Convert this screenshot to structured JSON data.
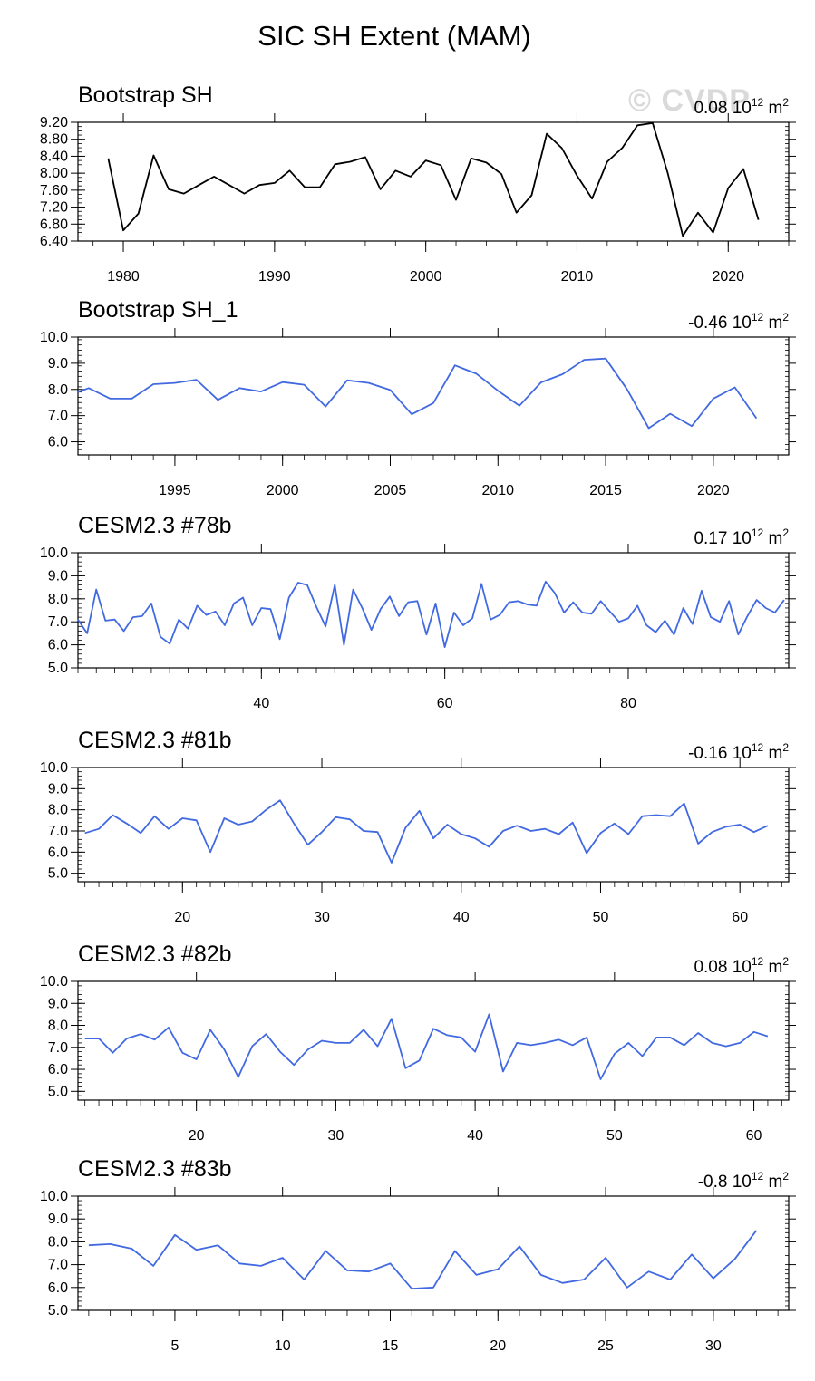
{
  "title": "SIC SH Extent (MAM)",
  "watermark": "© CVDP",
  "colors": {
    "obs": "#000000",
    "model": "#4169e1",
    "axis": "#000000"
  },
  "chart_data": [
    {
      "type": "line",
      "title": "Bootstrap SH",
      "trend": {
        "value": "0.08",
        "unit_base": "10",
        "unit_exp": "12",
        "unit_tail": "m",
        "unit_exp2": "2"
      },
      "line_color": "#000000",
      "xlim": [
        1977,
        2024
      ],
      "ylim": [
        6.4,
        9.2
      ],
      "yticks": [
        6.4,
        6.8,
        7.2,
        7.6,
        8.0,
        8.4,
        8.8,
        9.2
      ],
      "ytick_labels": [
        "6.40",
        "6.80",
        "7.20",
        "7.60",
        "8.00",
        "8.40",
        "8.80",
        "9.20"
      ],
      "yminor": 0.1,
      "xticks": [
        1980,
        1990,
        2000,
        2010,
        2020
      ],
      "xtick_labels": [
        "1980",
        "1990",
        "2000",
        "2010",
        "2020"
      ],
      "xminor": 2,
      "x": [
        1979,
        1980,
        1981,
        1982,
        1983,
        1984,
        1985,
        1986,
        1987,
        1988,
        1989,
        1990,
        1991,
        1992,
        1993,
        1994,
        1995,
        1996,
        1997,
        1998,
        1999,
        2000,
        2001,
        2002,
        2003,
        2004,
        2005,
        2006,
        2007,
        2008,
        2009,
        2010,
        2011,
        2012,
        2013,
        2014,
        2015,
        2016,
        2017,
        2018,
        2019,
        2020,
        2021,
        2022
      ],
      "y": [
        8.35,
        6.65,
        7.05,
        8.42,
        7.62,
        7.52,
        7.72,
        7.92,
        7.72,
        7.52,
        7.72,
        7.77,
        8.06,
        7.67,
        7.67,
        8.21,
        8.27,
        8.38,
        7.62,
        8.06,
        7.92,
        8.3,
        8.19,
        7.37,
        8.35,
        8.25,
        7.98,
        7.07,
        7.48,
        8.93,
        8.59,
        7.94,
        7.4,
        8.27,
        8.6,
        9.13,
        9.18,
        8.0,
        6.52,
        7.07,
        6.6,
        7.65,
        8.1,
        6.9
      ]
    },
    {
      "type": "line",
      "title": "Bootstrap SH_1",
      "trend": {
        "value": "-0.46",
        "unit_base": "10",
        "unit_exp": "12",
        "unit_tail": "m",
        "unit_exp2": "2"
      },
      "line_color": "#4169e1",
      "xlim": [
        1990.5,
        2023.5
      ],
      "ylim": [
        5.5,
        10.0
      ],
      "yticks": [
        6.0,
        7.0,
        8.0,
        9.0,
        10.0
      ],
      "ytick_labels": [
        "6.0",
        "7.0",
        "8.0",
        "9.0",
        "10.0"
      ],
      "yminor": 0.2,
      "xticks": [
        1995,
        2000,
        2005,
        2010,
        2015,
        2020
      ],
      "xtick_labels": [
        "1995",
        "2000",
        "2005",
        "2010",
        "2015",
        "2020"
      ],
      "xminor": 1,
      "x": [
        1990.5,
        1991,
        1992,
        1993,
        1994,
        1995,
        1996,
        1997,
        1998,
        1999,
        2000,
        2001,
        2002,
        2003,
        2004,
        2005,
        2006,
        2007,
        2008,
        2009,
        2010,
        2011,
        2012,
        2013,
        2014,
        2015,
        2016,
        2017,
        2018,
        2019,
        2020,
        2021,
        2022
      ],
      "y": [
        7.9,
        8.05,
        7.65,
        7.65,
        8.2,
        8.25,
        8.37,
        7.6,
        8.05,
        7.92,
        8.28,
        8.18,
        7.35,
        8.35,
        8.25,
        7.98,
        7.05,
        7.48,
        8.92,
        8.6,
        7.95,
        7.38,
        8.27,
        8.58,
        9.13,
        9.18,
        8.0,
        6.52,
        7.07,
        6.6,
        7.65,
        8.08,
        6.9
      ]
    },
    {
      "type": "line",
      "title": "CESM2.3 #78b",
      "trend": {
        "value": "0.17",
        "unit_base": "10",
        "unit_exp": "12",
        "unit_tail": "m",
        "unit_exp2": "2"
      },
      "line_color": "#4169e1",
      "xlim": [
        20,
        97.5
      ],
      "ylim": [
        5.0,
        10.0
      ],
      "yticks": [
        5.0,
        6.0,
        7.0,
        8.0,
        9.0,
        10.0
      ],
      "ytick_labels": [
        "5.0",
        "6.0",
        "7.0",
        "8.0",
        "9.0",
        "10.0"
      ],
      "yminor": 0.2,
      "xticks": [
        40,
        60,
        80
      ],
      "xtick_labels": [
        "40",
        "60",
        "80"
      ],
      "xminor": 2,
      "x": [
        20,
        21,
        22,
        23,
        24,
        25,
        26,
        27,
        28,
        29,
        30,
        31,
        32,
        33,
        34,
        35,
        36,
        37,
        38,
        39,
        40,
        41,
        42,
        43,
        44,
        45,
        46,
        47,
        48,
        49,
        50,
        51,
        52,
        53,
        54,
        55,
        56,
        57,
        58,
        59,
        60,
        61,
        62,
        63,
        64,
        65,
        66,
        67,
        68,
        69,
        70,
        71,
        72,
        73,
        74,
        75,
        76,
        77,
        78,
        79,
        80,
        81,
        82,
        83,
        84,
        85,
        86,
        87,
        88,
        89,
        90,
        91,
        92,
        93,
        94,
        95,
        96,
        97
      ],
      "y": [
        7.1,
        6.5,
        8.4,
        7.05,
        7.1,
        6.6,
        7.2,
        7.25,
        7.8,
        6.35,
        6.05,
        7.1,
        6.7,
        7.7,
        7.3,
        7.45,
        6.85,
        7.8,
        8.05,
        6.85,
        7.6,
        7.55,
        6.25,
        8.05,
        8.7,
        8.6,
        7.65,
        6.8,
        8.6,
        6.0,
        8.4,
        7.6,
        6.65,
        7.55,
        8.1,
        7.25,
        7.85,
        7.9,
        6.45,
        7.8,
        5.9,
        7.4,
        6.85,
        7.15,
        8.65,
        7.1,
        7.3,
        7.85,
        7.9,
        7.75,
        7.7,
        8.75,
        8.25,
        7.4,
        7.85,
        7.4,
        7.35,
        7.9,
        7.45,
        7.0,
        7.15,
        7.7,
        6.85,
        6.55,
        7.05,
        6.45,
        7.6,
        6.9,
        8.35,
        7.2,
        7.0,
        7.9,
        6.45,
        7.25,
        7.95,
        7.6,
        7.4,
        7.95
      ]
    },
    {
      "type": "line",
      "title": "CESM2.3 #81b",
      "trend": {
        "value": "-0.16",
        "unit_base": "10",
        "unit_exp": "12",
        "unit_tail": "m",
        "unit_exp2": "2"
      },
      "line_color": "#4169e1",
      "xlim": [
        12.5,
        63.5
      ],
      "ylim": [
        4.6,
        10.0
      ],
      "yticks": [
        5.0,
        6.0,
        7.0,
        8.0,
        9.0,
        10.0
      ],
      "ytick_labels": [
        "5.0",
        "6.0",
        "7.0",
        "8.0",
        "9.0",
        "10.0"
      ],
      "yminor": 0.2,
      "xticks": [
        20,
        30,
        40,
        50,
        60
      ],
      "xtick_labels": [
        "20",
        "30",
        "40",
        "50",
        "60"
      ],
      "xminor": 1,
      "x": [
        13,
        14,
        15,
        16,
        17,
        18,
        19,
        20,
        21,
        22,
        23,
        24,
        25,
        26,
        27,
        28,
        29,
        30,
        31,
        32,
        33,
        34,
        35,
        36,
        37,
        38,
        39,
        40,
        41,
        42,
        43,
        44,
        45,
        46,
        47,
        48,
        49,
        50,
        51,
        52,
        53,
        54,
        55,
        56,
        57,
        58,
        59,
        60,
        61,
        62
      ],
      "y": [
        6.9,
        7.1,
        7.75,
        7.35,
        6.9,
        7.7,
        7.1,
        7.6,
        7.5,
        6.0,
        7.6,
        7.3,
        7.45,
        8.0,
        8.45,
        7.35,
        6.35,
        6.95,
        7.65,
        7.55,
        7.0,
        6.95,
        5.5,
        7.15,
        7.95,
        6.65,
        7.3,
        6.85,
        6.65,
        6.25,
        7.0,
        7.25,
        7.0,
        7.1,
        6.85,
        7.4,
        5.95,
        6.9,
        7.35,
        6.85,
        7.7,
        7.75,
        7.7,
        8.3,
        6.4,
        6.95,
        7.2,
        7.3,
        6.95,
        7.25
      ]
    },
    {
      "type": "line",
      "title": "CESM2.3 #82b",
      "trend": {
        "value": "0.08",
        "unit_base": "10",
        "unit_exp": "12",
        "unit_tail": "m",
        "unit_exp2": "2"
      },
      "line_color": "#4169e1",
      "xlim": [
        11.5,
        62.5
      ],
      "ylim": [
        4.6,
        10.0
      ],
      "yticks": [
        5.0,
        6.0,
        7.0,
        8.0,
        9.0,
        10.0
      ],
      "ytick_labels": [
        "5.0",
        "6.0",
        "7.0",
        "8.0",
        "9.0",
        "10.0"
      ],
      "yminor": 0.2,
      "xticks": [
        20,
        30,
        40,
        50,
        60
      ],
      "xtick_labels": [
        "20",
        "30",
        "40",
        "50",
        "60"
      ],
      "xminor": 1,
      "x": [
        12,
        13,
        14,
        15,
        16,
        17,
        18,
        19,
        20,
        21,
        22,
        23,
        24,
        25,
        26,
        27,
        28,
        29,
        30,
        31,
        32,
        33,
        34,
        35,
        36,
        37,
        38,
        39,
        40,
        41,
        42,
        43,
        44,
        45,
        46,
        47,
        48,
        49,
        50,
        51,
        52,
        53,
        54,
        55,
        56,
        57,
        58,
        59,
        60,
        61
      ],
      "y": [
        7.4,
        7.4,
        6.75,
        7.4,
        7.6,
        7.35,
        7.9,
        6.75,
        6.45,
        7.8,
        6.9,
        5.65,
        7.05,
        7.6,
        6.8,
        6.2,
        6.9,
        7.3,
        7.2,
        7.2,
        7.8,
        7.05,
        8.3,
        6.05,
        6.4,
        7.85,
        7.55,
        7.45,
        6.8,
        8.5,
        5.9,
        7.2,
        7.1,
        7.2,
        7.35,
        7.1,
        7.45,
        5.55,
        6.7,
        7.2,
        6.6,
        7.45,
        7.45,
        7.1,
        7.65,
        7.2,
        7.05,
        7.2,
        7.7,
        7.5
      ]
    },
    {
      "type": "line",
      "title": "CESM2.3 #83b",
      "trend": {
        "value": "-0.8",
        "unit_base": "10",
        "unit_exp": "12",
        "unit_tail": "m",
        "unit_exp2": "2"
      },
      "line_color": "#4169e1",
      "xlim": [
        0.5,
        33.5
      ],
      "ylim": [
        5.0,
        10.0
      ],
      "yticks": [
        5.0,
        6.0,
        7.0,
        8.0,
        9.0,
        10.0
      ],
      "ytick_labels": [
        "5.0",
        "6.0",
        "7.0",
        "8.0",
        "9.0",
        "10.0"
      ],
      "yminor": 0.2,
      "xticks": [
        5,
        10,
        15,
        20,
        25,
        30
      ],
      "xtick_labels": [
        "5",
        "10",
        "15",
        "20",
        "25",
        "30"
      ],
      "xminor": 1,
      "x": [
        1,
        2,
        3,
        4,
        5,
        6,
        7,
        8,
        9,
        10,
        11,
        12,
        13,
        14,
        15,
        16,
        17,
        18,
        19,
        20,
        21,
        22,
        23,
        24,
        25,
        26,
        27,
        28,
        29,
        30,
        31,
        32
      ],
      "y": [
        7.85,
        7.9,
        7.7,
        6.95,
        8.3,
        7.65,
        7.85,
        7.05,
        6.95,
        7.3,
        6.35,
        7.6,
        6.75,
        6.7,
        7.05,
        5.95,
        6.0,
        7.6,
        6.55,
        6.8,
        7.8,
        6.55,
        6.2,
        6.35,
        7.3,
        6.0,
        6.7,
        6.35,
        7.45,
        6.4,
        7.25,
        8.5
      ]
    }
  ]
}
